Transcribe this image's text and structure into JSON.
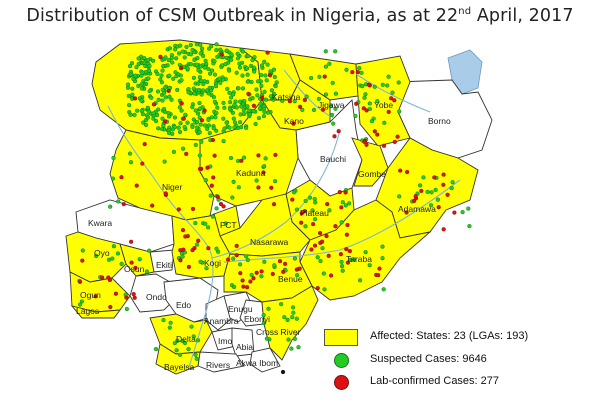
{
  "title_main": "Distribution of CSM Outbreak in Nigeria, as at 22",
  "title_sup": "nd",
  "title_end": " April, 2017",
  "states": {
    "sokoto_zamfara_region": "",
    "katsina": "Katsina",
    "jigawa": "Jigawa",
    "yobe": "Yobe",
    "borno": "Borno",
    "kano": "Kano",
    "bauchi": "Bauchi",
    "gombe": "Gombe",
    "adamawa": "Adamawa",
    "kaduna": "Kaduna",
    "niger": "Niger",
    "plateau": "Plateau",
    "fct": "FCT",
    "kwara": "Kwara",
    "nasarawa": "Nasarawa",
    "taraba": "Taraba",
    "oyo": "Oyo",
    "osun": "Osun",
    "ekiti": "Ekiti",
    "kogi": "Kogi",
    "benue": "Benue",
    "ogun": "Ogun",
    "lagos": "Lagos",
    "ondo": "Ondo",
    "edo": "Edo",
    "enugu": "Enugu",
    "ebonyi": "Ebonyi",
    "anambra": "Anambra",
    "cross_river": "Cross River",
    "delta": "Delta",
    "imo": "Imo",
    "abia": "Abia",
    "bayelsa": "Bayelsa",
    "rivers": "Rivers",
    "akwa_ibom": "Akwa Ibom"
  },
  "legend": {
    "affected": "Affected: States: 23 (LGAs: 193)",
    "suspected": "Suspected Cases: 9646",
    "confirmed": "Lab-confirmed Cases: 277"
  },
  "colors": {
    "affected_fill": "#ffff00",
    "suspected_dot": "#22cc22",
    "confirmed_dot": "#dd1111",
    "river": "#7fb4d6",
    "lake": "#a9cde8"
  }
}
